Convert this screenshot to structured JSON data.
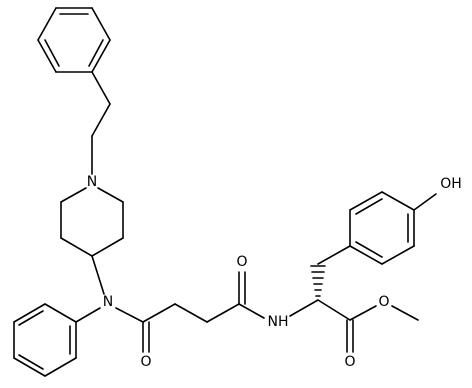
{
  "atoms": [
    {
      "label": "N"
    },
    {
      "label": "N"
    },
    {
      "label": "O"
    },
    {
      "label": "O"
    },
    {
      "label": "NH"
    },
    {
      "label": "OH"
    },
    {
      "label": "O"
    },
    {
      "label": "O"
    }
  ]
}
